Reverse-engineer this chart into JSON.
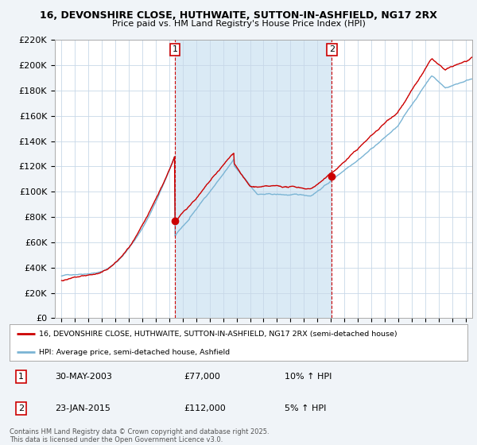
{
  "title_line1": "16, DEVONSHIRE CLOSE, HUTHWAITE, SUTTON-IN-ASHFIELD, NG17 2RX",
  "title_line2": "Price paid vs. HM Land Registry's House Price Index (HPI)",
  "legend_line1": "16, DEVONSHIRE CLOSE, HUTHWAITE, SUTTON-IN-ASHFIELD, NG17 2RX (semi-detached house)",
  "legend_line2": "HPI: Average price, semi-detached house, Ashfield",
  "footnote": "Contains HM Land Registry data © Crown copyright and database right 2025.\nThis data is licensed under the Open Government Licence v3.0.",
  "transaction1_date": "30-MAY-2003",
  "transaction1_price": "£77,000",
  "transaction1_hpi": "10% ↑ HPI",
  "transaction2_date": "23-JAN-2015",
  "transaction2_price": "£112,000",
  "transaction2_hpi": "5% ↑ HPI",
  "marker1_x": 2003.41,
  "marker1_y": 77000,
  "marker2_x": 2015.06,
  "marker2_y": 112000,
  "ylim": [
    0,
    220000
  ],
  "xlim_start": 1994.5,
  "xlim_end": 2025.5,
  "red_color": "#cc0000",
  "blue_color": "#7ab4d4",
  "shade_color": "#daeaf5",
  "background_color": "#f0f4f8",
  "plot_bg_color": "#ffffff",
  "grid_color": "#c8d8e8"
}
